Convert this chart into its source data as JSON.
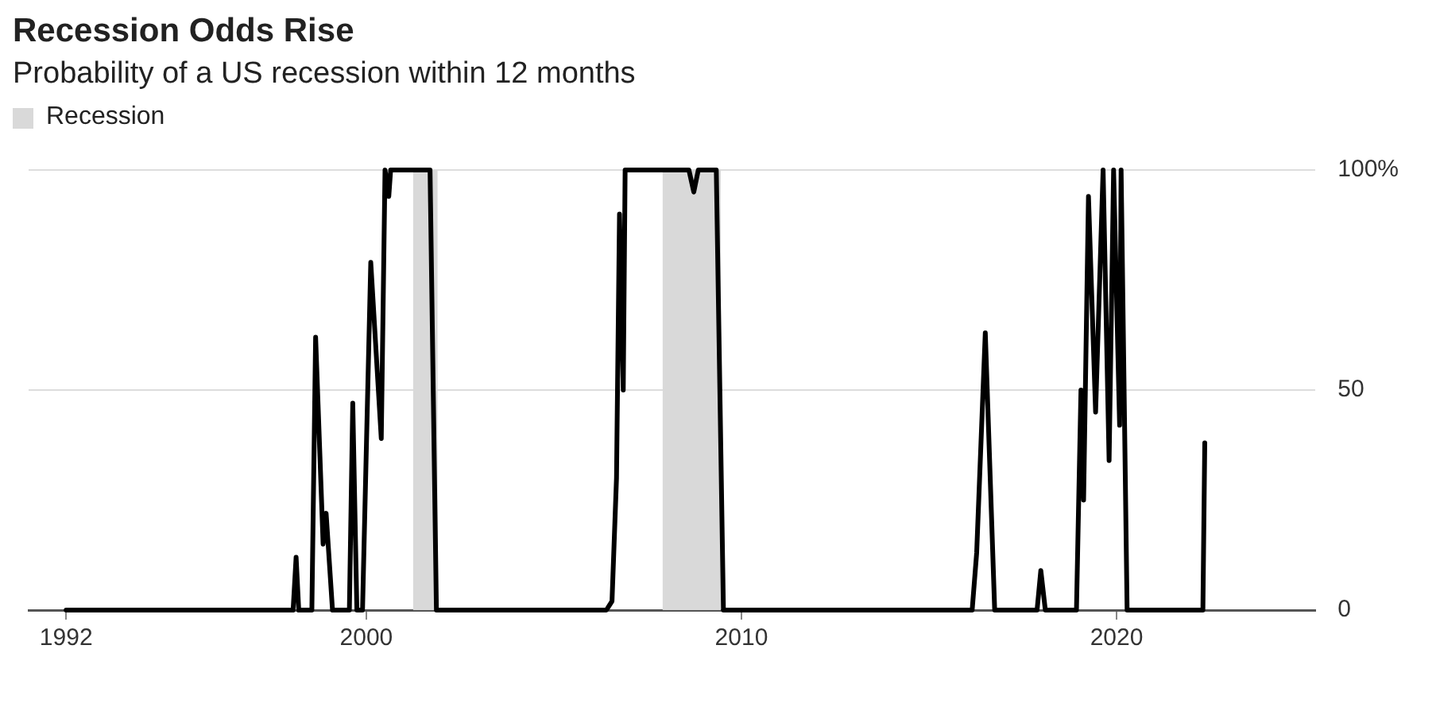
{
  "chart_data": {
    "type": "line",
    "title": "Recession Odds Rise",
    "subtitle": "Probability of a US recession within 12 months",
    "x": [
      1992.0,
      1998.05,
      1998.13,
      1998.2,
      1998.55,
      1998.65,
      1998.85,
      1998.93,
      1999.1,
      1999.55,
      1999.64,
      1999.75,
      1999.9,
      2000.12,
      2000.4,
      2000.5,
      2000.6,
      2000.65,
      2000.75,
      2001.7,
      2001.87,
      2006.4,
      2006.55,
      2006.67,
      2006.75,
      2006.85,
      2006.9,
      2007.0,
      2008.6,
      2008.73,
      2008.85,
      2009.33,
      2009.52,
      2016.15,
      2016.27,
      2016.5,
      2016.75,
      2017.88,
      2017.98,
      2018.1,
      2018.93,
      2019.05,
      2019.12,
      2019.25,
      2019.44,
      2019.64,
      2019.8,
      2019.92,
      2020.08,
      2020.12,
      2020.28,
      2022.3,
      2022.35
    ],
    "series": [
      {
        "color": "#000000",
        "values": [
          0,
          0,
          12,
          0,
          0,
          62,
          15,
          22,
          0,
          0,
          47,
          0,
          0,
          79,
          39,
          100,
          94,
          100,
          100,
          100,
          0,
          0,
          2,
          30,
          90,
          50,
          100,
          100,
          100,
          95,
          100,
          100,
          0,
          0,
          13,
          63,
          0,
          0,
          9,
          0,
          0,
          50,
          25,
          94,
          45,
          100,
          34,
          100,
          42,
          100,
          0,
          0,
          38
        ]
      }
    ],
    "xlim": [
      1991,
      2025.3
    ],
    "xticks": [
      1992,
      2000,
      2010,
      2020
    ],
    "ylim": [
      0,
      100
    ],
    "yticks": [
      0,
      50,
      {
        "value": 100,
        "label": "100%"
      }
    ],
    "grid": "y",
    "legend": "top left",
    "marker": "none",
    "line_style": "solid",
    "bands": [
      {
        "axis": "x",
        "from": 2001.25,
        "to": 2001.9,
        "label": "Recession",
        "color": "#d9d9d9"
      },
      {
        "axis": "x",
        "from": 2007.9,
        "to": 2009.45,
        "color": "#d9d9d9"
      }
    ]
  }
}
